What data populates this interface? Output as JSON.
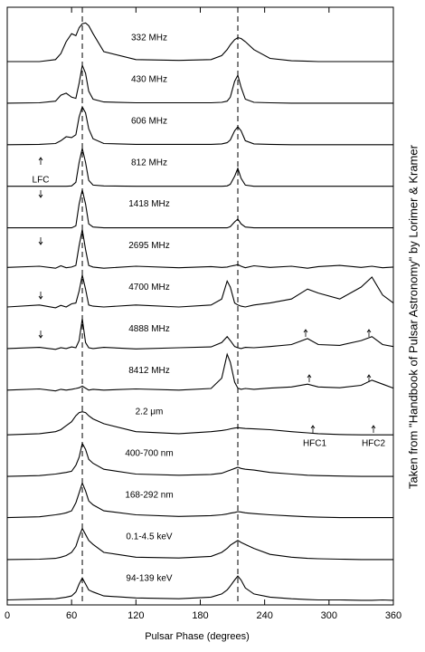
{
  "chart_data": {
    "type": "line",
    "xlabel": "Pulsar Phase (degrees)",
    "xlim": [
      0,
      360
    ],
    "xticks": [
      0,
      60,
      120,
      180,
      240,
      300,
      360
    ],
    "reference_lines": [
      70,
      215
    ],
    "color": "#000000",
    "annotations": [
      "LFC",
      "HFC1",
      "HFC2"
    ],
    "source_note": "Taken from \"Handbook of Pulsar Astronomy\" by Lorimer & Kramer",
    "x": [
      0,
      30,
      45,
      50,
      55,
      60,
      64,
      67,
      70,
      73,
      76,
      80,
      90,
      120,
      160,
      190,
      200,
      205,
      208,
      212,
      215,
      218,
      222,
      230,
      245,
      265,
      280,
      290,
      310,
      330,
      340,
      350,
      360
    ],
    "series": [
      {
        "name": "332 MHz",
        "values": [
          0,
          0,
          0.05,
          0.2,
          0.5,
          0.7,
          0.65,
          0.85,
          0.95,
          0.97,
          0.9,
          0.7,
          0.25,
          0.05,
          0.03,
          0.05,
          0.15,
          0.3,
          0.42,
          0.55,
          0.6,
          0.58,
          0.5,
          0.3,
          0.08,
          0.02,
          0.01,
          0,
          0,
          0,
          0,
          0,
          0
        ]
      },
      {
        "name": "430 MHz",
        "values": [
          0,
          0.01,
          0.05,
          0.2,
          0.25,
          0.15,
          0.12,
          0.5,
          0.95,
          0.75,
          0.3,
          0.1,
          0.03,
          0.01,
          0.01,
          0.01,
          0.02,
          0.05,
          0.15,
          0.55,
          0.7,
          0.4,
          0.1,
          0.02,
          0.01,
          0,
          0,
          0,
          0,
          0,
          0,
          0,
          0
        ]
      },
      {
        "name": "606 MHz",
        "values": [
          0,
          0.01,
          0.03,
          0.1,
          0.2,
          0.18,
          0.25,
          0.7,
          0.95,
          0.8,
          0.4,
          0.15,
          0.03,
          0.01,
          0.01,
          0.01,
          0.02,
          0.05,
          0.12,
          0.35,
          0.45,
          0.35,
          0.1,
          0.02,
          0.01,
          0,
          0,
          0,
          0,
          0,
          0,
          0,
          0
        ]
      },
      {
        "name": "812 MHz",
        "values": [
          0,
          0,
          0,
          0,
          0,
          0.01,
          0.1,
          0.6,
          0.95,
          0.6,
          0.15,
          0.03,
          0.01,
          0,
          0,
          0,
          0,
          0.01,
          0.05,
          0.25,
          0.45,
          0.2,
          0.03,
          0,
          0,
          0,
          0,
          0,
          0,
          0,
          0,
          0,
          0
        ]
      },
      {
        "name": "1418 MHz",
        "values": [
          0,
          0,
          0,
          0,
          0,
          0,
          0.05,
          0.6,
          0.95,
          0.6,
          0.1,
          0.02,
          0,
          0,
          0,
          0,
          0,
          0,
          0.03,
          0.15,
          0.22,
          0.1,
          0.02,
          0,
          0,
          0,
          0,
          0,
          0,
          0,
          0,
          0,
          0
        ]
      },
      {
        "name": "2695 MHz",
        "values": [
          0.05,
          0.08,
          0.03,
          0.09,
          0.04,
          0.06,
          0.1,
          0.6,
          1.0,
          0.5,
          0.1,
          0.06,
          0.03,
          0.08,
          0.04,
          0.07,
          0.05,
          0.06,
          0.08,
          0.1,
          0.12,
          0.08,
          0.04,
          0.09,
          0.05,
          0.08,
          0.03,
          0.07,
          0.1,
          0.05,
          0.08,
          0.04,
          0.06
        ]
      },
      {
        "name": "4700 MHz",
        "values": [
          0.1,
          0.15,
          0.08,
          0.14,
          0.1,
          0.18,
          0.2,
          0.5,
          0.9,
          0.55,
          0.15,
          0.12,
          0.1,
          0.15,
          0.1,
          0.15,
          0.3,
          0.75,
          0.6,
          0.2,
          0.15,
          0.12,
          0.1,
          0.15,
          0.2,
          0.3,
          0.55,
          0.45,
          0.3,
          0.6,
          0.85,
          0.4,
          0.2
        ]
      },
      {
        "name": "4888 MHz",
        "values": [
          0.1,
          0.13,
          0.08,
          0.12,
          0.1,
          0.14,
          0.12,
          0.3,
          0.85,
          0.25,
          0.12,
          0.1,
          0.13,
          0.09,
          0.12,
          0.14,
          0.25,
          0.4,
          0.3,
          0.15,
          0.12,
          0.1,
          0.13,
          0.12,
          0.15,
          0.2,
          0.35,
          0.2,
          0.18,
          0.3,
          0.4,
          0.2,
          0.15
        ]
      },
      {
        "name": "8412 MHz",
        "values": [
          0.1,
          0.13,
          0.08,
          0.12,
          0.1,
          0.12,
          0.14,
          0.16,
          0.2,
          0.15,
          0.1,
          0.12,
          0.1,
          0.13,
          0.1,
          0.14,
          0.4,
          1.0,
          0.8,
          0.3,
          0.15,
          0.12,
          0.14,
          0.12,
          0.15,
          0.18,
          0.25,
          0.18,
          0.16,
          0.22,
          0.35,
          0.25,
          0.15
        ]
      },
      {
        "name": "2.2 μm",
        "values": [
          0.02,
          0.05,
          0.1,
          0.15,
          0.25,
          0.35,
          0.5,
          0.58,
          0.6,
          0.58,
          0.5,
          0.42,
          0.3,
          0.1,
          0.05,
          0.1,
          0.13,
          0.15,
          0.17,
          0.19,
          0.2,
          0.19,
          0.18,
          0.17,
          0.15,
          0.1,
          0.07,
          0.05,
          0.03,
          0.02,
          0.02,
          0.02,
          0.02
        ]
      },
      {
        "name": "400-700 nm",
        "values": [
          0.02,
          0.04,
          0.08,
          0.1,
          0.12,
          0.15,
          0.3,
          0.5,
          0.85,
          0.7,
          0.45,
          0.35,
          0.2,
          0.08,
          0.05,
          0.07,
          0.1,
          0.15,
          0.18,
          0.22,
          0.25,
          0.22,
          0.2,
          0.18,
          0.12,
          0.08,
          0.05,
          0.04,
          0.03,
          0.02,
          0.02,
          0.02,
          0.02
        ]
      },
      {
        "name": "168-292 nm",
        "values": [
          0.03,
          0.05,
          0.1,
          0.12,
          0.15,
          0.2,
          0.4,
          0.65,
          0.9,
          0.7,
          0.45,
          0.35,
          0.2,
          0.1,
          0.06,
          0.08,
          0.1,
          0.12,
          0.14,
          0.16,
          0.18,
          0.17,
          0.15,
          0.13,
          0.1,
          0.07,
          0.05,
          0.04,
          0.03,
          0.03,
          0.03,
          0.03,
          0.03
        ]
      },
      {
        "name": "0.1-4.5 keV",
        "values": [
          0.02,
          0.03,
          0.05,
          0.08,
          0.12,
          0.2,
          0.35,
          0.6,
          0.8,
          0.65,
          0.5,
          0.4,
          0.2,
          0.08,
          0.06,
          0.1,
          0.2,
          0.3,
          0.38,
          0.45,
          0.5,
          0.45,
          0.4,
          0.3,
          0.15,
          0.08,
          0.05,
          0.04,
          0.03,
          0.02,
          0.02,
          0.02,
          0.02
        ]
      },
      {
        "name": "94-139 keV",
        "values": [
          0.05,
          0.07,
          0.08,
          0.1,
          0.12,
          0.15,
          0.25,
          0.45,
          0.6,
          0.45,
          0.3,
          0.25,
          0.15,
          0.1,
          0.08,
          0.12,
          0.2,
          0.3,
          0.4,
          0.55,
          0.65,
          0.55,
          0.35,
          0.2,
          0.12,
          0.08,
          0.06,
          0.05,
          0.05,
          0.04,
          0.04,
          0.05,
          0.04
        ]
      }
    ]
  }
}
